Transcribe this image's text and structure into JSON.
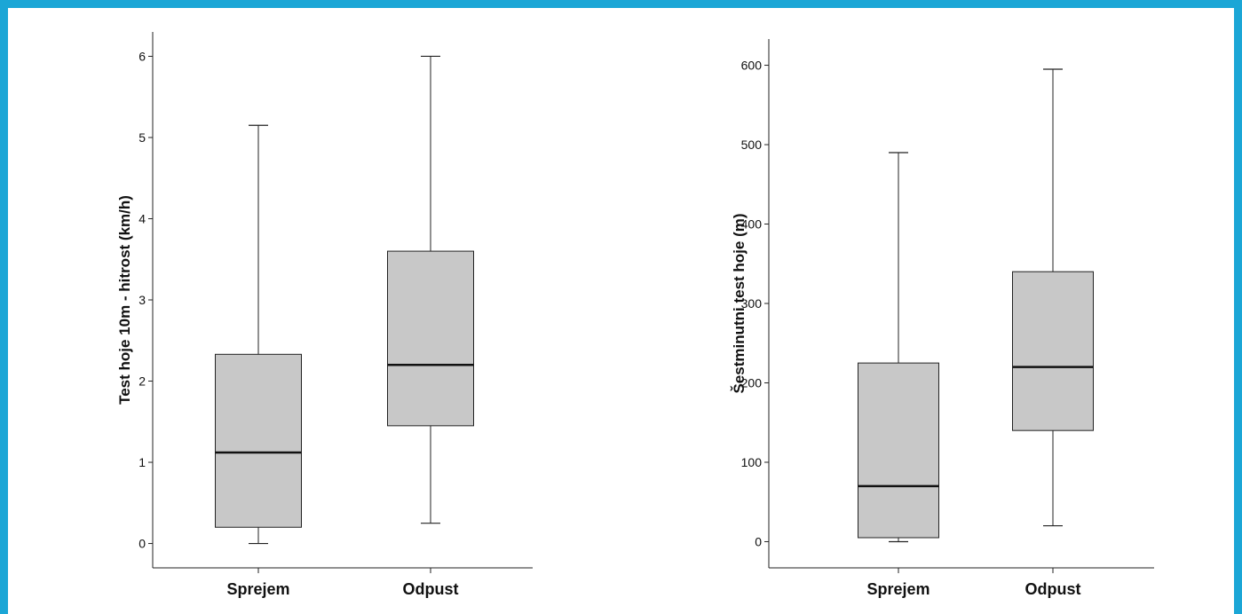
{
  "frame_color": "#1ba6d6",
  "box_fill": "#c8c8c8",
  "chart_data": [
    {
      "type": "boxplot",
      "ylabel": "Test hoje 10m - hitrost (km/h)",
      "xlabel": "",
      "ylim": [
        -0.3,
        6.3
      ],
      "yticks": [
        0,
        1,
        2,
        3,
        4,
        5,
        6
      ],
      "grid": false,
      "categories": [
        "Sprejem",
        "Odpust"
      ],
      "boxes": [
        {
          "category": "Sprejem",
          "min": 0.0,
          "q1": 0.2,
          "median": 1.12,
          "q3": 2.33,
          "max": 5.15
        },
        {
          "category": "Odpust",
          "min": 0.25,
          "q1": 1.45,
          "median": 2.2,
          "q3": 3.6,
          "max": 6.0
        }
      ]
    },
    {
      "type": "boxplot",
      "ylabel": "Šestminutni test hoje (m)",
      "xlabel": "",
      "ylim": [
        -33,
        633
      ],
      "yticks": [
        0,
        100,
        200,
        300,
        400,
        500,
        600
      ],
      "grid": false,
      "categories": [
        "Sprejem",
        "Odpust"
      ],
      "boxes": [
        {
          "category": "Sprejem",
          "min": 0,
          "q1": 5,
          "median": 70,
          "q3": 225,
          "max": 490
        },
        {
          "category": "Odpust",
          "min": 20,
          "q1": 140,
          "median": 220,
          "q3": 340,
          "max": 595
        }
      ]
    }
  ]
}
